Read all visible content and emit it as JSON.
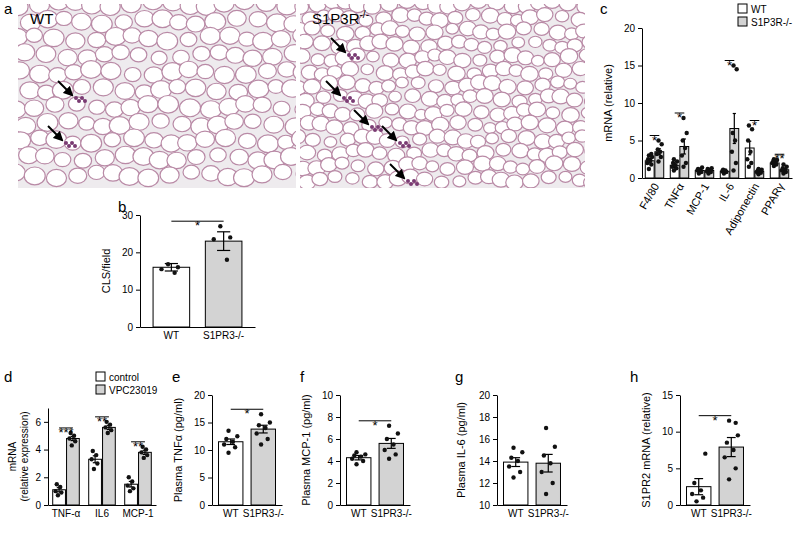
{
  "image_panel": {
    "title": "a",
    "images": [
      {
        "label": "WT"
      },
      {
        "label": "S1P3R",
        "superscript": "-/-"
      }
    ]
  },
  "chart_data": [
    {
      "type": "bar",
      "title": "b",
      "y_label": "CLS/field",
      "categories": [
        "WT",
        "S1PR3-/-"
      ],
      "values": [
        16,
        23
      ],
      "colors": [
        "#ffffff",
        "#d3d3d3"
      ],
      "errors": [
        1,
        2.5
      ],
      "points": [
        [
          16.8,
          16,
          15.5,
          14.5
        ],
        [
          27,
          24,
          23.5,
          18
        ]
      ],
      "annotations": [
        "*"
      ],
      "ylim": [
        0,
        30
      ],
      "yticks": [
        0,
        10,
        20,
        30
      ]
    },
    {
      "type": "bar",
      "title": "c",
      "y_label": "mRNA (relative)",
      "legend": "top-right",
      "categories": [
        "F4/80",
        "TNFα",
        "MCP-1",
        "IL-6",
        "Adiponectin",
        "PPARγ"
      ],
      "series": [
        {
          "name": "WT",
          "color": "#ffffff",
          "values": [
            2.3,
            1.7,
            1.0,
            0.9,
            4.0,
            2.0
          ],
          "errors": [
            0.3,
            0.3,
            0.15,
            0.1,
            0.9,
            0.15
          ],
          "points": [
            [
              1.2,
              1.8,
              2.0,
              2.3,
              2.5,
              2.8,
              3.0,
              3.2
            ],
            [
              1.0,
              1.3,
              1.5,
              1.7,
              2.0,
              2.2,
              2.5
            ],
            [
              0.6,
              0.8,
              1.0,
              1.1,
              1.2,
              1.4
            ],
            [
              0.6,
              0.8,
              0.9,
              1.0,
              1.1
            ],
            [
              1.5,
              2.0,
              2.5,
              3.5,
              5.0,
              6.5,
              7.0
            ],
            [
              1.6,
              1.8,
              2.0,
              2.1,
              2.2,
              2.4,
              2.5
            ]
          ]
        },
        {
          "name": "S1P3R-/-",
          "color": "#d3d3d3",
          "values": [
            3.5,
            4.2,
            1.0,
            6.6,
            0.9,
            1.1
          ],
          "errors": [
            0.4,
            1.0,
            0.15,
            2.0,
            0.1,
            0.2
          ],
          "points": [
            [
              2.2,
              2.8,
              3.2,
              3.5,
              3.8,
              4.5,
              5.0
            ],
            [
              1.5,
              2.0,
              3.0,
              4.0,
              5.0,
              6.0,
              8.0
            ],
            [
              0.6,
              0.8,
              0.9,
              1.1,
              1.2,
              1.3
            ],
            [
              1.0,
              2.0,
              3.5,
              5.0,
              6.0,
              14.5,
              15.0
            ],
            [
              0.5,
              0.7,
              0.8,
              0.9,
              1.0,
              1.1,
              1.2
            ],
            [
              0.6,
              0.8,
              1.0,
              1.1,
              1.3,
              1.5,
              1.8
            ]
          ]
        }
      ],
      "annotations": [
        "*",
        "*",
        null,
        "*",
        "*",
        "**"
      ],
      "ylim": [
        0,
        20
      ],
      "yticks": [
        0,
        5,
        10,
        15,
        20
      ]
    },
    {
      "type": "bar",
      "title": "d",
      "y_label": [
        "mRNA",
        "(relative expression)"
      ],
      "legend": "top-right",
      "categories": [
        "TNF-α",
        "IL6",
        "MCP-1"
      ],
      "series": [
        {
          "name": "control",
          "color": "#ffffff",
          "values": [
            1.1,
            3.3,
            1.5
          ],
          "errors": [
            0.15,
            0.25,
            0.2
          ],
          "points": [
            [
              0.7,
              0.9,
              1.0,
              1.3,
              1.5
            ],
            [
              2.6,
              3.0,
              3.3,
              3.6,
              3.9
            ],
            [
              1.0,
              1.2,
              1.4,
              1.7,
              2.0
            ]
          ]
        },
        {
          "name": "VPC23019",
          "color": "#d3d3d3",
          "values": [
            4.8,
            5.6,
            3.8
          ],
          "errors": [
            0.15,
            0.15,
            0.15
          ],
          "points": [
            [
              4.3,
              4.6,
              4.8,
              5.0,
              5.2
            ],
            [
              5.2,
              5.4,
              5.6,
              5.8,
              6.0
            ],
            [
              3.4,
              3.6,
              3.8,
              4.0,
              4.2
            ]
          ]
        }
      ],
      "annotations": [
        "***",
        "**",
        "**"
      ],
      "ylim": [
        0,
        7
      ],
      "yticks": [
        0,
        2,
        4,
        6
      ]
    },
    {
      "type": "bar",
      "title": "e",
      "y_label": "Plasma TNFα (pg/ml)",
      "categories": [
        "WT",
        "S1PR3-/-"
      ],
      "values": [
        11.5,
        13.8
      ],
      "colors": [
        "#ffffff",
        "#d3d3d3"
      ],
      "errors": [
        0.5,
        0.7
      ],
      "points": [
        [
          9.5,
          10.5,
          11,
          11.5,
          12,
          12.5,
          13.5
        ],
        [
          11,
          12,
          13,
          14,
          14.5,
          15,
          16.5
        ]
      ],
      "annotations": [
        "*"
      ],
      "ylim": [
        0,
        20
      ],
      "yticks": [
        0,
        5,
        10,
        15,
        20
      ]
    },
    {
      "type": "bar",
      "title": "f",
      "y_label": "Plasma MCP-1 (pg/ml)",
      "categories": [
        "WT",
        "S1PR3-/-"
      ],
      "values": [
        4.3,
        5.6
      ],
      "colors": [
        "#ffffff",
        "#d3d3d3"
      ],
      "errors": [
        0.2,
        0.45
      ],
      "points": [
        [
          3.7,
          4.0,
          4.2,
          4.4,
          4.5,
          4.6,
          4.8
        ],
        [
          4.2,
          4.6,
          5.0,
          5.5,
          6.0,
          6.5,
          7.2
        ]
      ],
      "annotations": [
        "*"
      ],
      "ylim": [
        0,
        10
      ],
      "yticks": [
        0,
        2,
        4,
        6,
        8,
        10
      ]
    },
    {
      "type": "bar",
      "title": "g",
      "y_label": "Plasma IL-6 (pg/ml)",
      "categories": [
        "WT",
        "S1PR3-/-"
      ],
      "values": [
        13.9,
        13.8
      ],
      "colors": [
        "#ffffff",
        "#d3d3d3"
      ],
      "errors": [
        0.4,
        0.8
      ],
      "points": [
        [
          12.5,
          13,
          13.5,
          14,
          14.3,
          14.8,
          15.2
        ],
        [
          11,
          12,
          13,
          13.8,
          14.5,
          15.3,
          17
        ]
      ],
      "ylim": [
        10,
        20
      ],
      "yticks": [
        10,
        12,
        14,
        16,
        18,
        20
      ]
    },
    {
      "type": "bar",
      "title": "h",
      "y_label": "S1PR2 mRNA (relative)",
      "categories": [
        "WT",
        "S1PR3-/-"
      ],
      "values": [
        2.5,
        7.9
      ],
      "colors": [
        "#ffffff",
        "#d3d3d3"
      ],
      "errors": [
        1.1,
        1.3
      ],
      "points": [
        [
          0.5,
          1,
          1.5,
          2,
          3,
          7
        ],
        [
          3.5,
          5,
          6.5,
          7.5,
          8.5,
          9.5,
          11.5,
          11.2
        ]
      ],
      "annotations": [
        "*"
      ],
      "ylim": [
        0,
        15
      ],
      "yticks": [
        0,
        5,
        10,
        15
      ]
    }
  ]
}
